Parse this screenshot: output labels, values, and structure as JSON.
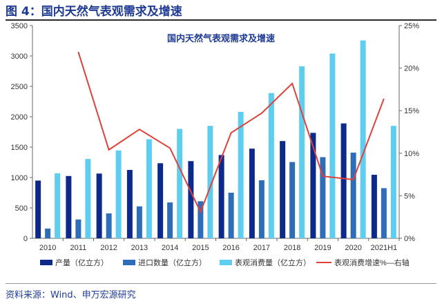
{
  "figure_label": "图 4：国内天然气表观需求及增速",
  "source": "资料来源：Wind、申万宏源研究",
  "chart_data": {
    "type": "bar+line",
    "title": "国内天然气表观需求及增速",
    "categories": [
      "2010",
      "2011",
      "2012",
      "2013",
      "2014",
      "2015",
      "2016",
      "2017",
      "2018",
      "2019",
      "2020",
      "2021H1"
    ],
    "series": [
      {
        "name": "产量（亿立方）",
        "type": "bar",
        "axis": "left",
        "color": "#0d2a8a",
        "values": [
          950,
          1025,
          1065,
          1125,
          1235,
          1270,
          1370,
          1475,
          1600,
          1735,
          1890,
          1045
        ]
      },
      {
        "name": "进口数量（亿立方）",
        "type": "bar",
        "axis": "left",
        "color": "#2e6db8",
        "values": [
          160,
          310,
          410,
          525,
          590,
          610,
          750,
          955,
          1255,
          1335,
          1410,
          825
        ]
      },
      {
        "name": "表观消费量（亿立方）",
        "type": "bar",
        "axis": "left",
        "color": "#5fcdf0",
        "values": [
          1070,
          1305,
          1445,
          1630,
          1800,
          1850,
          2080,
          2390,
          2830,
          3040,
          3255,
          1850
        ]
      },
      {
        "name": "表观消费增速%—右轴",
        "type": "line",
        "axis": "right",
        "color": "#e0403a",
        "values": [
          null,
          21.9,
          10.4,
          12.8,
          10.6,
          3.1,
          12.4,
          14.7,
          18.2,
          7.3,
          6.9,
          16.4
        ]
      }
    ],
    "y_left": {
      "min": 0,
      "max": 3500,
      "ticks": [
        0,
        500,
        1000,
        1500,
        2000,
        2500,
        3000,
        3500
      ]
    },
    "y_right": {
      "min": 0,
      "max": 25,
      "ticks": [
        "0%",
        "5%",
        "10%",
        "15%",
        "20%",
        "25%"
      ]
    },
    "grid": false,
    "legend": "bottom"
  }
}
